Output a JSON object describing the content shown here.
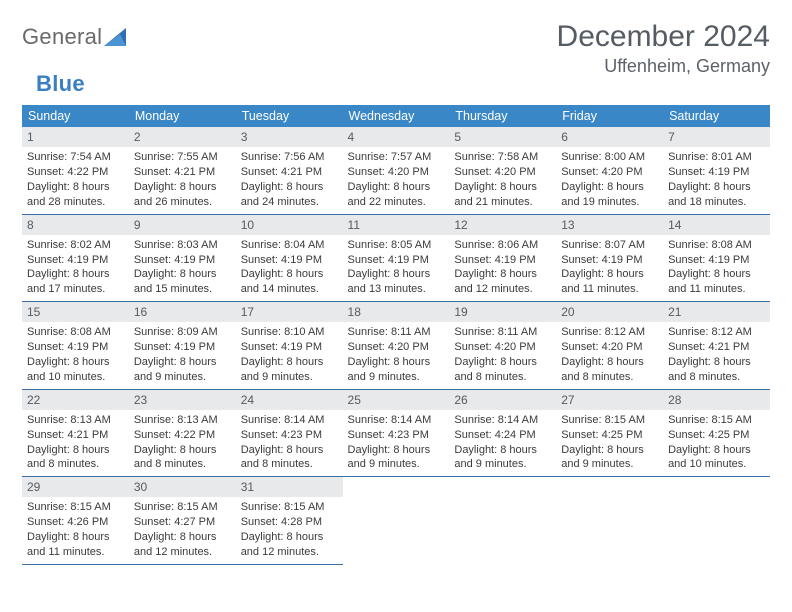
{
  "colors": {
    "header_bg": "#3a87c8",
    "header_text": "#ffffff",
    "daynum_bg": "#e8e9ea",
    "row_border": "#3a6fa3",
    "text": "#3b3b3b",
    "title": "#555c63",
    "logo_gray": "#6a6a6a",
    "logo_blue": "#3a7fc4"
  },
  "typography": {
    "title_fontsize": 30,
    "location_fontsize": 18,
    "header_fontsize": 12.5,
    "cell_fontsize": 11,
    "logo_fontsize": 22
  },
  "logo": {
    "part1": "General",
    "part2": "Blue"
  },
  "title": "December 2024",
  "location": "Uffenheim, Germany",
  "dayHeaders": [
    "Sunday",
    "Monday",
    "Tuesday",
    "Wednesday",
    "Thursday",
    "Friday",
    "Saturday"
  ],
  "days": [
    {
      "n": "1",
      "sr": "Sunrise: 7:54 AM",
      "ss": "Sunset: 4:22 PM",
      "d1": "Daylight: 8 hours",
      "d2": "and 28 minutes."
    },
    {
      "n": "2",
      "sr": "Sunrise: 7:55 AM",
      "ss": "Sunset: 4:21 PM",
      "d1": "Daylight: 8 hours",
      "d2": "and 26 minutes."
    },
    {
      "n": "3",
      "sr": "Sunrise: 7:56 AM",
      "ss": "Sunset: 4:21 PM",
      "d1": "Daylight: 8 hours",
      "d2": "and 24 minutes."
    },
    {
      "n": "4",
      "sr": "Sunrise: 7:57 AM",
      "ss": "Sunset: 4:20 PM",
      "d1": "Daylight: 8 hours",
      "d2": "and 22 minutes."
    },
    {
      "n": "5",
      "sr": "Sunrise: 7:58 AM",
      "ss": "Sunset: 4:20 PM",
      "d1": "Daylight: 8 hours",
      "d2": "and 21 minutes."
    },
    {
      "n": "6",
      "sr": "Sunrise: 8:00 AM",
      "ss": "Sunset: 4:20 PM",
      "d1": "Daylight: 8 hours",
      "d2": "and 19 minutes."
    },
    {
      "n": "7",
      "sr": "Sunrise: 8:01 AM",
      "ss": "Sunset: 4:19 PM",
      "d1": "Daylight: 8 hours",
      "d2": "and 18 minutes."
    },
    {
      "n": "8",
      "sr": "Sunrise: 8:02 AM",
      "ss": "Sunset: 4:19 PM",
      "d1": "Daylight: 8 hours",
      "d2": "and 17 minutes."
    },
    {
      "n": "9",
      "sr": "Sunrise: 8:03 AM",
      "ss": "Sunset: 4:19 PM",
      "d1": "Daylight: 8 hours",
      "d2": "and 15 minutes."
    },
    {
      "n": "10",
      "sr": "Sunrise: 8:04 AM",
      "ss": "Sunset: 4:19 PM",
      "d1": "Daylight: 8 hours",
      "d2": "and 14 minutes."
    },
    {
      "n": "11",
      "sr": "Sunrise: 8:05 AM",
      "ss": "Sunset: 4:19 PM",
      "d1": "Daylight: 8 hours",
      "d2": "and 13 minutes."
    },
    {
      "n": "12",
      "sr": "Sunrise: 8:06 AM",
      "ss": "Sunset: 4:19 PM",
      "d1": "Daylight: 8 hours",
      "d2": "and 12 minutes."
    },
    {
      "n": "13",
      "sr": "Sunrise: 8:07 AM",
      "ss": "Sunset: 4:19 PM",
      "d1": "Daylight: 8 hours",
      "d2": "and 11 minutes."
    },
    {
      "n": "14",
      "sr": "Sunrise: 8:08 AM",
      "ss": "Sunset: 4:19 PM",
      "d1": "Daylight: 8 hours",
      "d2": "and 11 minutes."
    },
    {
      "n": "15",
      "sr": "Sunrise: 8:08 AM",
      "ss": "Sunset: 4:19 PM",
      "d1": "Daylight: 8 hours",
      "d2": "and 10 minutes."
    },
    {
      "n": "16",
      "sr": "Sunrise: 8:09 AM",
      "ss": "Sunset: 4:19 PM",
      "d1": "Daylight: 8 hours",
      "d2": "and 9 minutes."
    },
    {
      "n": "17",
      "sr": "Sunrise: 8:10 AM",
      "ss": "Sunset: 4:19 PM",
      "d1": "Daylight: 8 hours",
      "d2": "and 9 minutes."
    },
    {
      "n": "18",
      "sr": "Sunrise: 8:11 AM",
      "ss": "Sunset: 4:20 PM",
      "d1": "Daylight: 8 hours",
      "d2": "and 9 minutes."
    },
    {
      "n": "19",
      "sr": "Sunrise: 8:11 AM",
      "ss": "Sunset: 4:20 PM",
      "d1": "Daylight: 8 hours",
      "d2": "and 8 minutes."
    },
    {
      "n": "20",
      "sr": "Sunrise: 8:12 AM",
      "ss": "Sunset: 4:20 PM",
      "d1": "Daylight: 8 hours",
      "d2": "and 8 minutes."
    },
    {
      "n": "21",
      "sr": "Sunrise: 8:12 AM",
      "ss": "Sunset: 4:21 PM",
      "d1": "Daylight: 8 hours",
      "d2": "and 8 minutes."
    },
    {
      "n": "22",
      "sr": "Sunrise: 8:13 AM",
      "ss": "Sunset: 4:21 PM",
      "d1": "Daylight: 8 hours",
      "d2": "and 8 minutes."
    },
    {
      "n": "23",
      "sr": "Sunrise: 8:13 AM",
      "ss": "Sunset: 4:22 PM",
      "d1": "Daylight: 8 hours",
      "d2": "and 8 minutes."
    },
    {
      "n": "24",
      "sr": "Sunrise: 8:14 AM",
      "ss": "Sunset: 4:23 PM",
      "d1": "Daylight: 8 hours",
      "d2": "and 8 minutes."
    },
    {
      "n": "25",
      "sr": "Sunrise: 8:14 AM",
      "ss": "Sunset: 4:23 PM",
      "d1": "Daylight: 8 hours",
      "d2": "and 9 minutes."
    },
    {
      "n": "26",
      "sr": "Sunrise: 8:14 AM",
      "ss": "Sunset: 4:24 PM",
      "d1": "Daylight: 8 hours",
      "d2": "and 9 minutes."
    },
    {
      "n": "27",
      "sr": "Sunrise: 8:15 AM",
      "ss": "Sunset: 4:25 PM",
      "d1": "Daylight: 8 hours",
      "d2": "and 9 minutes."
    },
    {
      "n": "28",
      "sr": "Sunrise: 8:15 AM",
      "ss": "Sunset: 4:25 PM",
      "d1": "Daylight: 8 hours",
      "d2": "and 10 minutes."
    },
    {
      "n": "29",
      "sr": "Sunrise: 8:15 AM",
      "ss": "Sunset: 4:26 PM",
      "d1": "Daylight: 8 hours",
      "d2": "and 11 minutes."
    },
    {
      "n": "30",
      "sr": "Sunrise: 8:15 AM",
      "ss": "Sunset: 4:27 PM",
      "d1": "Daylight: 8 hours",
      "d2": "and 12 minutes."
    },
    {
      "n": "31",
      "sr": "Sunrise: 8:15 AM",
      "ss": "Sunset: 4:28 PM",
      "d1": "Daylight: 8 hours",
      "d2": "and 12 minutes."
    }
  ],
  "layout": {
    "type": "table",
    "columns": 7,
    "rows": 5,
    "start_weekday": 0,
    "trailing_empty": 4
  }
}
